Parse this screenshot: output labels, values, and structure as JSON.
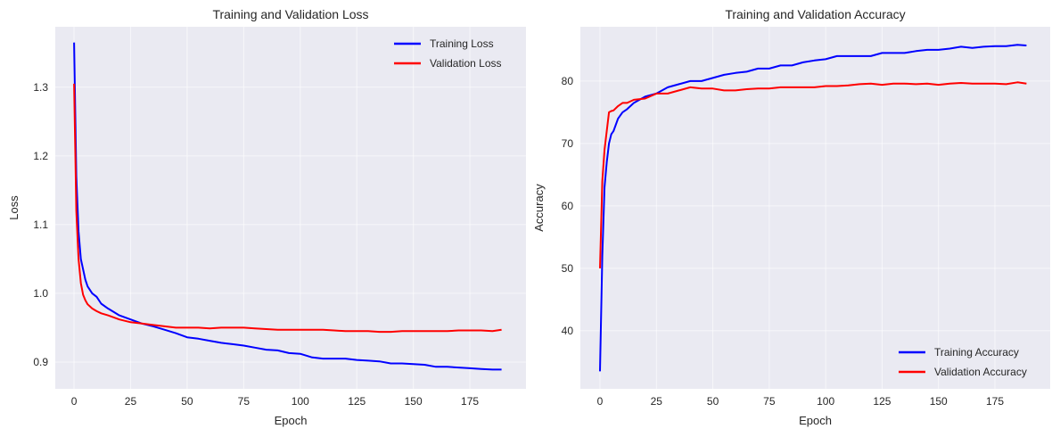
{
  "chart_data": [
    {
      "type": "line",
      "title": "Training and Validation Loss",
      "xlabel": "Epoch",
      "ylabel": "Loss",
      "xlim": [
        -8.3,
        199.8
      ],
      "ylim": [
        0.861,
        1.388
      ],
      "xticks": [
        0,
        25,
        50,
        75,
        100,
        125,
        150,
        175
      ],
      "yticks": [
        0.9,
        1.0,
        1.1,
        1.2,
        1.3
      ],
      "ytick_labels": [
        "0.9",
        "1.0",
        "1.1",
        "1.2",
        "1.3"
      ],
      "grid": true,
      "legend_position": "top-right",
      "x": [
        0,
        1,
        2,
        3,
        4,
        5,
        6,
        8,
        10,
        12,
        15,
        20,
        25,
        30,
        35,
        40,
        45,
        50,
        55,
        60,
        65,
        70,
        75,
        80,
        85,
        90,
        95,
        100,
        105,
        110,
        115,
        120,
        125,
        130,
        135,
        140,
        145,
        150,
        155,
        160,
        165,
        170,
        175,
        180,
        185,
        189
      ],
      "series": [
        {
          "name": "Training Loss",
          "color": "#0000ff",
          "values": [
            1.365,
            1.17,
            1.09,
            1.05,
            1.035,
            1.02,
            1.01,
            1.0,
            0.995,
            0.985,
            0.978,
            0.968,
            0.962,
            0.956,
            0.952,
            0.947,
            0.942,
            0.936,
            0.934,
            0.931,
            0.928,
            0.926,
            0.924,
            0.921,
            0.918,
            0.917,
            0.913,
            0.912,
            0.907,
            0.905,
            0.905,
            0.905,
            0.903,
            0.902,
            0.901,
            0.898,
            0.898,
            0.897,
            0.896,
            0.893,
            0.893,
            0.892,
            0.891,
            0.89,
            0.889,
            0.889
          ]
        },
        {
          "name": "Validation Loss",
          "color": "#ff0000",
          "values": [
            1.305,
            1.12,
            1.05,
            1.015,
            0.998,
            0.99,
            0.984,
            0.978,
            0.974,
            0.971,
            0.968,
            0.962,
            0.958,
            0.956,
            0.954,
            0.952,
            0.95,
            0.95,
            0.95,
            0.949,
            0.95,
            0.95,
            0.95,
            0.949,
            0.948,
            0.947,
            0.947,
            0.947,
            0.947,
            0.947,
            0.946,
            0.945,
            0.945,
            0.945,
            0.944,
            0.944,
            0.945,
            0.945,
            0.945,
            0.945,
            0.945,
            0.946,
            0.946,
            0.946,
            0.945,
            0.947
          ]
        }
      ]
    },
    {
      "type": "line",
      "title": "Training and Validation Accuracy",
      "xlabel": "Epoch",
      "ylabel": "Accuracy",
      "xlim": [
        -8.7,
        199.5
      ],
      "ylim": [
        30.7,
        88.7
      ],
      "xticks": [
        0,
        25,
        50,
        75,
        100,
        125,
        150,
        175
      ],
      "yticks": [
        40,
        50,
        60,
        70,
        80
      ],
      "ytick_labels": [
        "40",
        "50",
        "60",
        "70",
        "80"
      ],
      "grid": true,
      "legend_position": "bottom-right",
      "x": [
        0,
        1,
        2,
        3,
        4,
        5,
        6,
        8,
        10,
        12,
        15,
        20,
        25,
        30,
        35,
        40,
        45,
        50,
        55,
        60,
        65,
        70,
        75,
        80,
        85,
        90,
        95,
        100,
        105,
        110,
        115,
        120,
        125,
        130,
        135,
        140,
        145,
        150,
        155,
        160,
        165,
        170,
        175,
        180,
        185,
        189
      ],
      "series": [
        {
          "name": "Training Accuracy",
          "color": "#0000ff",
          "values": [
            33.5,
            52,
            63,
            67,
            70,
            71.5,
            72,
            74,
            75,
            75.5,
            76.5,
            77.5,
            78,
            79,
            79.5,
            80,
            80,
            80.5,
            81,
            81.3,
            81.5,
            82,
            82,
            82.5,
            82.5,
            83,
            83.3,
            83.5,
            84,
            84,
            84,
            84,
            84.5,
            84.5,
            84.5,
            84.8,
            85,
            85,
            85.2,
            85.5,
            85.3,
            85.5,
            85.6,
            85.6,
            85.8,
            85.7
          ]
        },
        {
          "name": "Validation Accuracy",
          "color": "#ff0000",
          "values": [
            50,
            64,
            69,
            72,
            75,
            75.2,
            75.3,
            76,
            76.5,
            76.5,
            77,
            77.2,
            78,
            78,
            78.5,
            79,
            78.8,
            78.8,
            78.5,
            78.5,
            78.7,
            78.8,
            78.8,
            79,
            79,
            79,
            79,
            79.2,
            79.2,
            79.3,
            79.5,
            79.6,
            79.4,
            79.6,
            79.6,
            79.5,
            79.6,
            79.4,
            79.6,
            79.7,
            79.6,
            79.6,
            79.6,
            79.5,
            79.8,
            79.6
          ]
        }
      ]
    }
  ]
}
